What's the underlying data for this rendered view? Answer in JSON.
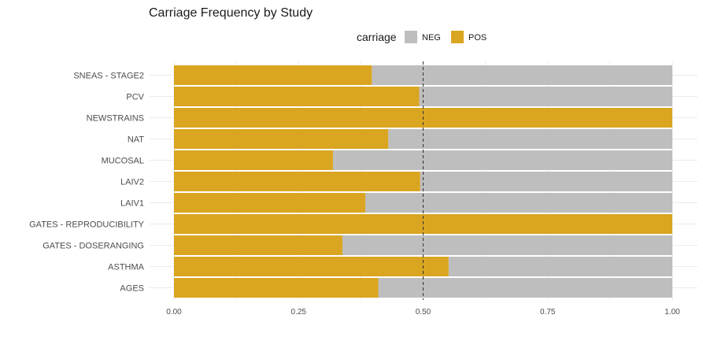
{
  "chart_data": {
    "type": "bar",
    "orientation": "horizontal",
    "stacked": "fill",
    "title": "Carriage Frequency by Study",
    "xlabel": "",
    "ylabel": "",
    "legend": {
      "title": "carriage",
      "position": "top",
      "entries": [
        "NEG",
        "POS"
      ]
    },
    "categories": [
      "SNEAS - STAGE2",
      "PCV",
      "NEWSTRAINS",
      "NAT",
      "MUCOSAL",
      "LAIV2",
      "LAIV1",
      "GATES - REPRODUCIBILITY",
      "GATES - DOSERANGING",
      "ASTHMA",
      "AGES"
    ],
    "series": [
      {
        "name": "POS",
        "color": "#DAA520",
        "values": [
          0.397,
          0.492,
          1.0,
          0.43,
          0.319,
          0.494,
          0.384,
          1.0,
          0.338,
          0.551,
          0.41
        ]
      },
      {
        "name": "NEG",
        "color": "#BEBEBE",
        "values": [
          0.603,
          0.508,
          0.0,
          0.57,
          0.681,
          0.506,
          0.616,
          0.0,
          0.662,
          0.449,
          0.59
        ]
      }
    ],
    "xlim": [
      0,
      1
    ],
    "xticks": [
      "0.00",
      "0.25",
      "0.50",
      "0.75",
      "1.00"
    ],
    "xtick_values": [
      0,
      0.25,
      0.5,
      0.75,
      1.0
    ],
    "reference_line": {
      "x": 0.5,
      "style": "dashed"
    },
    "grid": true
  }
}
